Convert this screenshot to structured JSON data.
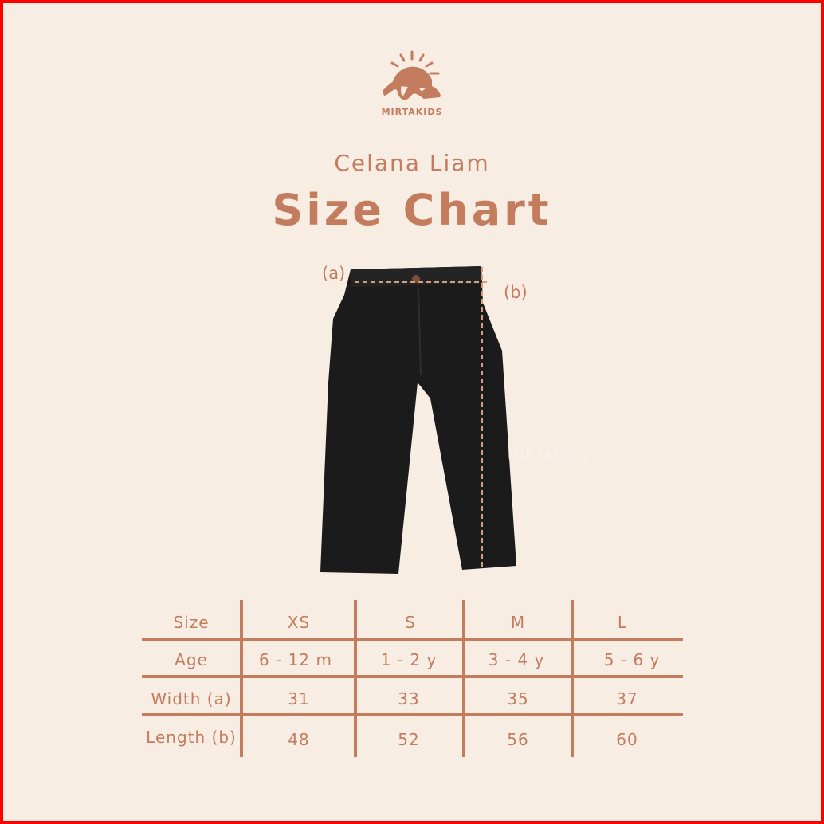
{
  "brand": {
    "name": "MIRTAKIDS",
    "icon": "sun-wave-logo",
    "color": "#c47c5e"
  },
  "header": {
    "subtitle": "Celana Liam",
    "title": "Size Chart"
  },
  "diagram": {
    "label_a": "(a)",
    "label_b": "(b)",
    "watermark": "MIRTAKIDS"
  },
  "table": {
    "headers": [
      "Size",
      "XS",
      "S",
      "M",
      "L"
    ],
    "rows": [
      [
        "Age",
        "6 - 12 m",
        "1 - 2 y",
        "3 - 4 y",
        "5 - 6 y"
      ],
      [
        "Width (a)",
        "31",
        "33",
        "35",
        "37"
      ],
      [
        "Length (b)",
        "48",
        "52",
        "56",
        "60"
      ]
    ]
  },
  "colors": {
    "background": "#f7ede3",
    "accent": "#c47c5e",
    "border": "#ff0000"
  }
}
